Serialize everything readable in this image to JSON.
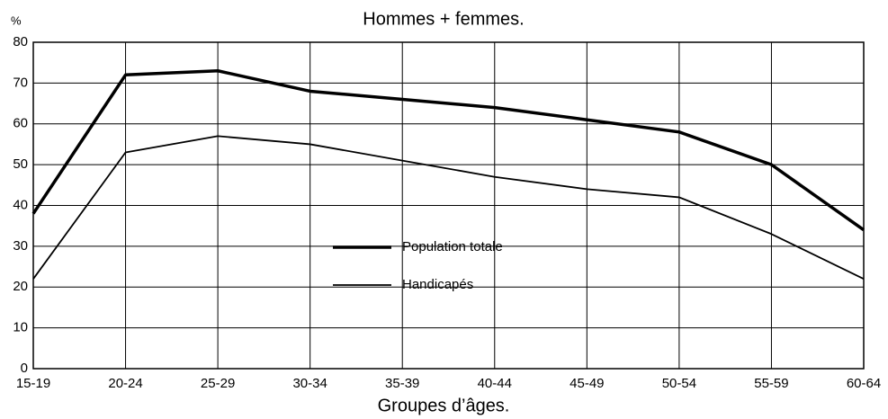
{
  "chart_data": {
    "type": "line",
    "title": "Hommes + femmes.",
    "y_unit": "%",
    "x_label": "Groupes d’âges.",
    "categories": [
      "15-19",
      "20-24",
      "25-29",
      "30-34",
      "35-39",
      "40-44",
      "45-49",
      "50-54",
      "55-59",
      "60-64"
    ],
    "series": [
      {
        "name": "Population totale",
        "color": "#000000",
        "line_width": 3.5,
        "values": [
          38,
          72,
          73,
          68,
          66,
          64,
          61,
          58,
          50,
          34
        ]
      },
      {
        "name": "Handicapés",
        "color": "#000000",
        "line_width": 1.8,
        "values": [
          22,
          53,
          57,
          55,
          51,
          47,
          44,
          42,
          33,
          22
        ]
      }
    ],
    "ylim": [
      0,
      80
    ],
    "yticks": [
      0,
      10,
      20,
      30,
      40,
      50,
      60,
      70,
      80
    ],
    "grid": true
  }
}
